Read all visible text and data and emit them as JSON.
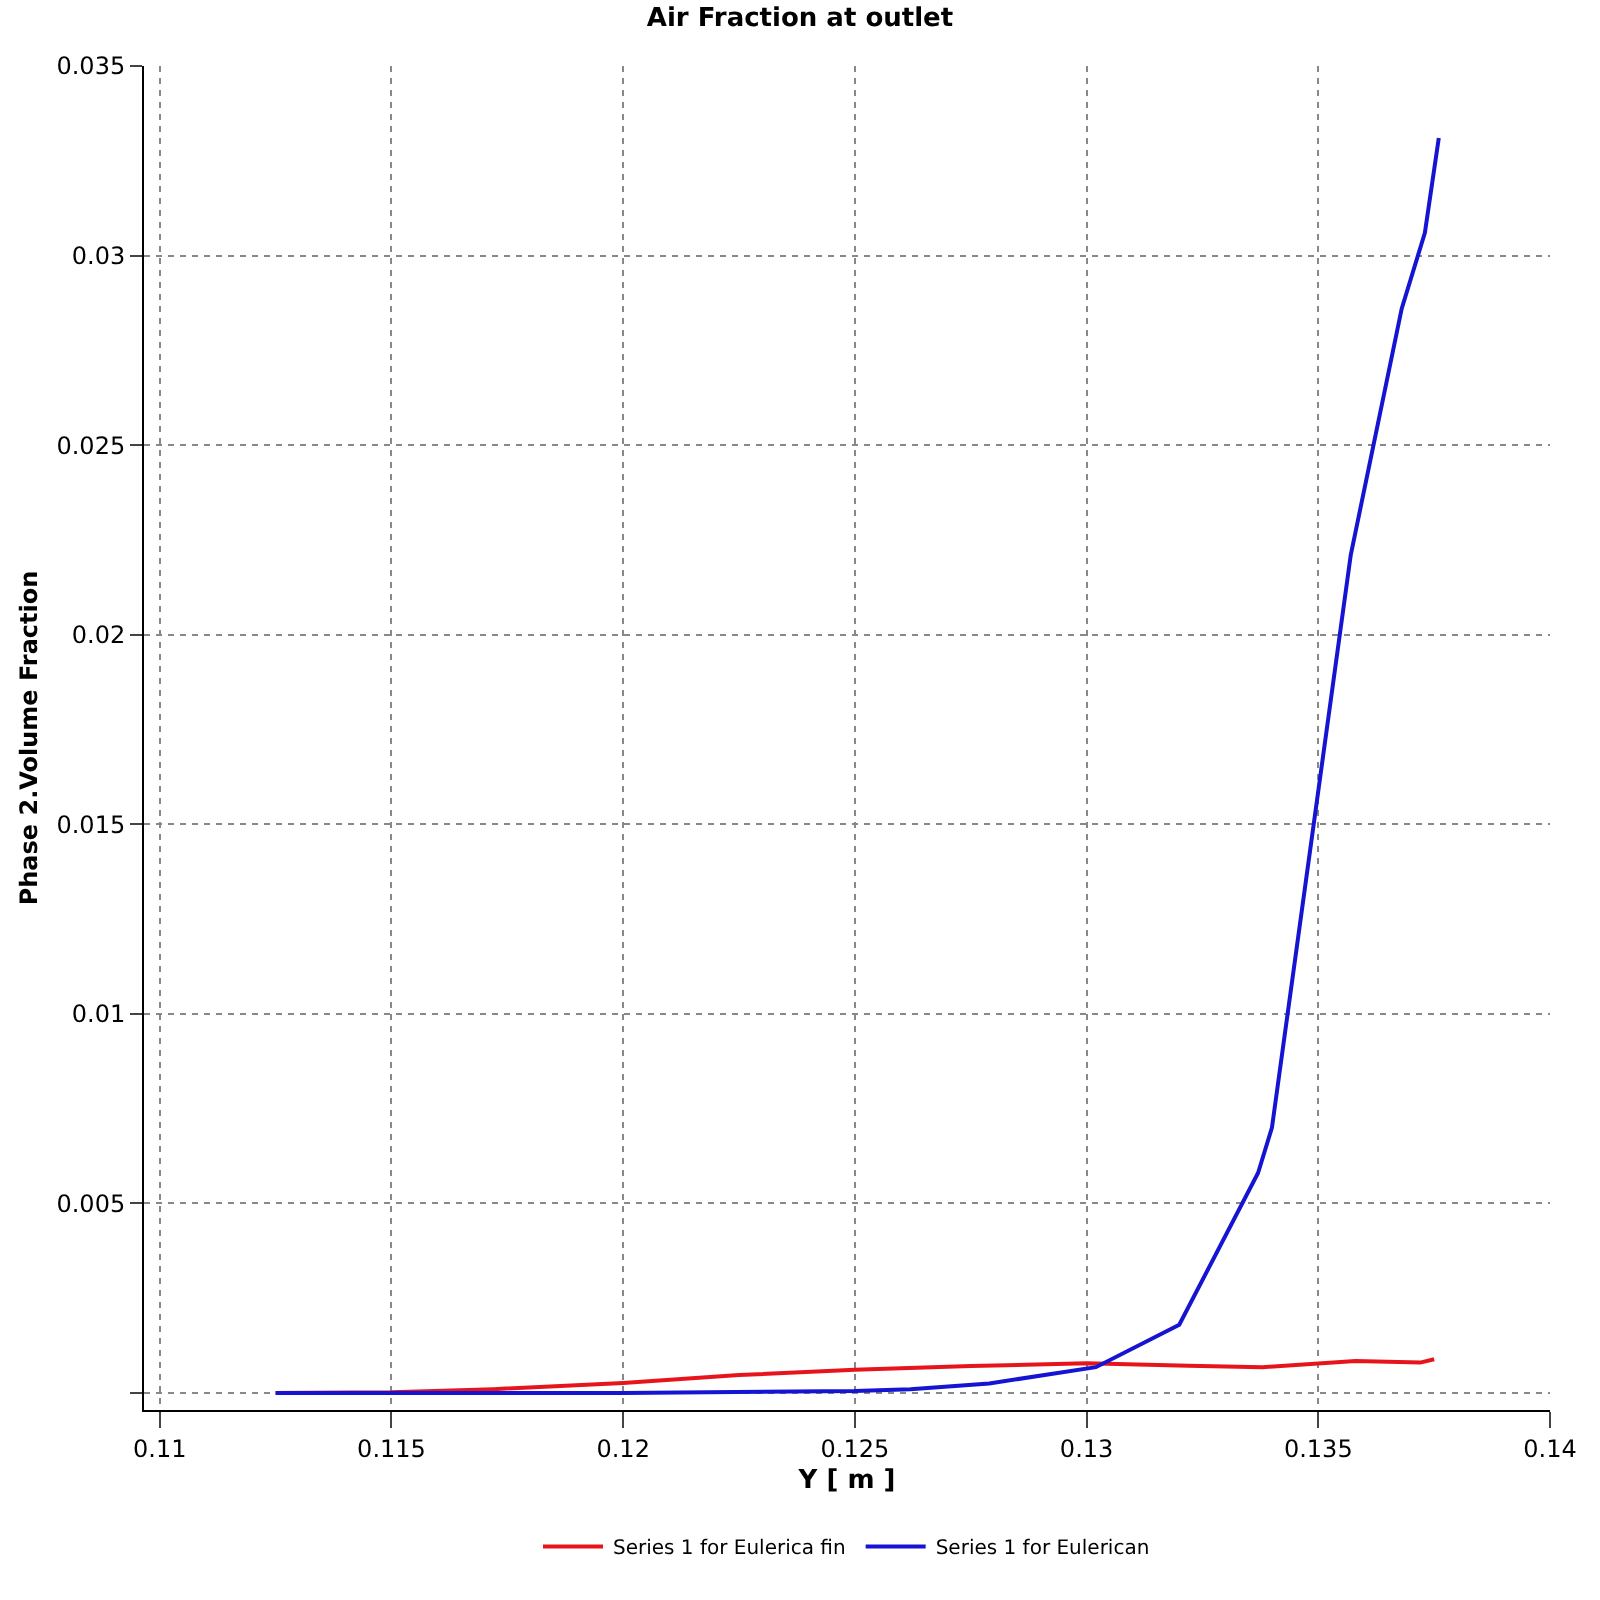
{
  "chart_data": {
    "type": "line",
    "title": "Air Fraction at outlet",
    "xlabel": "Y [ m ]",
    "ylabel": "Phase 2.Volume Fraction",
    "x": [
      0.1125,
      0.115,
      0.1172,
      0.12,
      0.1225,
      0.125,
      0.1275,
      0.13,
      0.1322,
      0.1338,
      0.1358,
      0.1372,
      0.1375
    ],
    "series": [
      {
        "name": "Series 1 for Eulerica fin",
        "color": "#e8141c",
        "values": [
          0.0,
          2e-05,
          0.0001,
          0.00026,
          0.00047,
          0.00061,
          0.00071,
          0.00078,
          0.00072,
          0.00068,
          0.00084,
          0.0008,
          0.00089
        ]
      },
      {
        "name": "Series 1 for Eulerican",
        "color": "#1414d2",
        "x": [
          0.1125,
          0.115,
          0.12,
          0.125,
          0.1262,
          0.1279,
          0.1302,
          0.132,
          0.1337,
          0.134,
          0.1357,
          0.1368,
          0.1373,
          0.1376
        ],
        "values": [
          0.0,
          0.0,
          0.0,
          5e-05,
          0.0001,
          0.00025,
          0.00068,
          0.0018,
          0.0058,
          0.007,
          0.0221,
          0.0286,
          0.0306,
          0.0331
        ]
      }
    ],
    "xlim": [
      0.10966,
      0.14
    ],
    "xticks": [
      0.11,
      0.115,
      0.12,
      0.125,
      0.13,
      0.135,
      0.14
    ],
    "ylim": [
      -0.00045,
      0.035
    ],
    "yticks": [
      {
        "value": 0,
        "label": null
      },
      0.005,
      0.01,
      0.015,
      0.02,
      0.025,
      0.03,
      0.035
    ],
    "grid": true,
    "legend": "bottom",
    "marker": "none",
    "line_style": "solid"
  }
}
